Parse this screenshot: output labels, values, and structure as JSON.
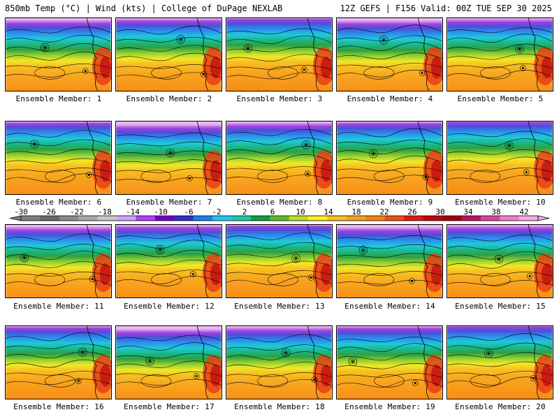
{
  "header": {
    "title_left": "850mb Temp (°C) | Wind (kts) | College of DuPage NEXLAB",
    "title_right": "12Z GEFS | F156 Valid: 00Z TUE SEP 30 2025"
  },
  "panels": [
    {
      "label": "Ensemble Member: 1"
    },
    {
      "label": "Ensemble Member: 2"
    },
    {
      "label": "Ensemble Member: 3"
    },
    {
      "label": "Ensemble Member: 4"
    },
    {
      "label": "Ensemble Member: 5"
    },
    {
      "label": "Ensemble Member: 6"
    },
    {
      "label": "Ensemble Member: 7"
    },
    {
      "label": "Ensemble Member: 8"
    },
    {
      "label": "Ensemble Member: 9"
    },
    {
      "label": "Ensemble Member: 10"
    },
    {
      "label": "Ensemble Member: 11"
    },
    {
      "label": "Ensemble Member: 12"
    },
    {
      "label": "Ensemble Member: 13"
    },
    {
      "label": "Ensemble Member: 14"
    },
    {
      "label": "Ensemble Member: 15"
    },
    {
      "label": "Ensemble Member: 16"
    },
    {
      "label": "Ensemble Member: 17"
    },
    {
      "label": "Ensemble Member: 18"
    },
    {
      "label": "Ensemble Member: 19"
    },
    {
      "label": "Ensemble Member: 20"
    }
  ],
  "colorbar": {
    "ticks": [
      "-30",
      "-26",
      "-22",
      "-18",
      "-14",
      "-10",
      "-6",
      "-2",
      "2",
      "6",
      "10",
      "14",
      "18",
      "22",
      "26",
      "30",
      "34",
      "38",
      "42"
    ],
    "colors": [
      "#7f7f7f",
      "#686868",
      "#8a8a8a",
      "#a9a9a9",
      "#c7c7c7",
      "#d0a0ff",
      "#b040ff",
      "#7000d0",
      "#3030c8",
      "#1e7ef0",
      "#1cc8f0",
      "#18c8a8",
      "#10a040",
      "#58c020",
      "#b8e020",
      "#f8f020",
      "#f8c018",
      "#f8a018",
      "#f88010",
      "#f05010",
      "#e01818",
      "#c00808",
      "#a00010",
      "#c01060",
      "#e040a0",
      "#f080c0",
      "#f8a8e0"
    ]
  }
}
